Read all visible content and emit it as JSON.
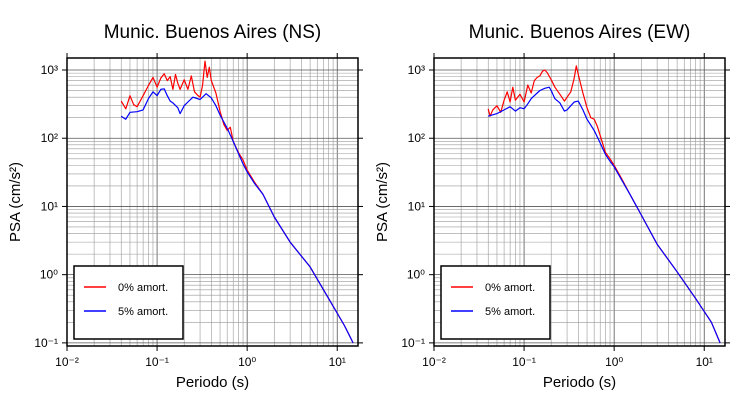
{
  "chart_data": [
    {
      "type": "line",
      "title": "Munic. Buenos Aires (NS)",
      "xlabel": "Periodo (s)",
      "ylabel": "PSA (cm/s²)",
      "xscale": "log",
      "yscale": "log",
      "xlim": [
        0.01,
        17
      ],
      "ylim": [
        0.09,
        1500
      ],
      "grid": true,
      "legend_position": "bottom-left",
      "x_tick_labels": [
        "10⁻²",
        "10⁻¹",
        "10⁰",
        "10¹"
      ],
      "y_tick_labels": [
        "10⁻¹",
        "10⁰",
        "10¹",
        "10²",
        "10³"
      ],
      "series": [
        {
          "name": "0% amort.",
          "color": "#ff0000",
          "points": [
            [
              0.04,
              350
            ],
            [
              0.045,
              270
            ],
            [
              0.05,
              420
            ],
            [
              0.055,
              310
            ],
            [
              0.06,
              290
            ],
            [
              0.07,
              420
            ],
            [
              0.08,
              590
            ],
            [
              0.09,
              780
            ],
            [
              0.1,
              560
            ],
            [
              0.11,
              760
            ],
            [
              0.12,
              880
            ],
            [
              0.13,
              700
            ],
            [
              0.14,
              800
            ],
            [
              0.15,
              520
            ],
            [
              0.16,
              860
            ],
            [
              0.17,
              640
            ],
            [
              0.18,
              520
            ],
            [
              0.2,
              720
            ],
            [
              0.22,
              520
            ],
            [
              0.24,
              820
            ],
            [
              0.26,
              480
            ],
            [
              0.28,
              430
            ],
            [
              0.3,
              400
            ],
            [
              0.32,
              600
            ],
            [
              0.34,
              1350
            ],
            [
              0.36,
              780
            ],
            [
              0.38,
              1100
            ],
            [
              0.4,
              700
            ],
            [
              0.45,
              460
            ],
            [
              0.5,
              250
            ],
            [
              0.55,
              160
            ],
            [
              0.6,
              130
            ],
            [
              0.65,
              145
            ],
            [
              0.7,
              90
            ],
            [
              0.8,
              62
            ],
            [
              0.9,
              48
            ],
            [
              1.0,
              34
            ],
            [
              1.2,
              23
            ],
            [
              1.5,
              15
            ],
            [
              2.0,
              7
            ],
            [
              3.0,
              3
            ],
            [
              5.0,
              1.3
            ],
            [
              8.0,
              0.45
            ],
            [
              12.0,
              0.18
            ],
            [
              15.0,
              0.1
            ]
          ]
        },
        {
          "name": "5% amort.",
          "color": "#0000ff",
          "points": [
            [
              0.04,
              210
            ],
            [
              0.045,
              190
            ],
            [
              0.05,
              240
            ],
            [
              0.06,
              245
            ],
            [
              0.07,
              260
            ],
            [
              0.08,
              380
            ],
            [
              0.09,
              480
            ],
            [
              0.1,
              420
            ],
            [
              0.11,
              520
            ],
            [
              0.12,
              530
            ],
            [
              0.13,
              420
            ],
            [
              0.14,
              350
            ],
            [
              0.15,
              330
            ],
            [
              0.17,
              280
            ],
            [
              0.18,
              230
            ],
            [
              0.2,
              300
            ],
            [
              0.22,
              340
            ],
            [
              0.25,
              400
            ],
            [
              0.3,
              370
            ],
            [
              0.35,
              450
            ],
            [
              0.4,
              390
            ],
            [
              0.45,
              300
            ],
            [
              0.5,
              220
            ],
            [
              0.6,
              140
            ],
            [
              0.7,
              90
            ],
            [
              0.8,
              60
            ],
            [
              0.9,
              42
            ],
            [
              1.0,
              32
            ],
            [
              1.2,
              22
            ],
            [
              1.5,
              15
            ],
            [
              2.0,
              7
            ],
            [
              3.0,
              3
            ],
            [
              5.0,
              1.3
            ],
            [
              8.0,
              0.45
            ],
            [
              12.0,
              0.18
            ],
            [
              15.0,
              0.1
            ]
          ]
        }
      ]
    },
    {
      "type": "line",
      "title": "Munic. Buenos Aires (EW)",
      "xlabel": "Periodo (s)",
      "ylabel": "PSA (cm/s²)",
      "xscale": "log",
      "yscale": "log",
      "xlim": [
        0.01,
        17
      ],
      "ylim": [
        0.09,
        1500
      ],
      "grid": true,
      "legend_position": "bottom-left",
      "x_tick_labels": [
        "10⁻²",
        "10⁻¹",
        "10⁰",
        "10¹"
      ],
      "y_tick_labels": [
        "10⁻¹",
        "10⁰",
        "10¹",
        "10²",
        "10³"
      ],
      "series": [
        {
          "name": "0% amort.",
          "color": "#ff0000",
          "points": [
            [
              0.04,
              270
            ],
            [
              0.042,
              210
            ],
            [
              0.045,
              260
            ],
            [
              0.05,
              300
            ],
            [
              0.055,
              240
            ],
            [
              0.06,
              360
            ],
            [
              0.065,
              480
            ],
            [
              0.07,
              340
            ],
            [
              0.075,
              560
            ],
            [
              0.08,
              360
            ],
            [
              0.09,
              440
            ],
            [
              0.1,
              340
            ],
            [
              0.11,
              600
            ],
            [
              0.12,
              460
            ],
            [
              0.13,
              700
            ],
            [
              0.14,
              780
            ],
            [
              0.15,
              820
            ],
            [
              0.16,
              960
            ],
            [
              0.17,
              1000
            ],
            [
              0.18,
              920
            ],
            [
              0.2,
              720
            ],
            [
              0.22,
              560
            ],
            [
              0.25,
              440
            ],
            [
              0.28,
              350
            ],
            [
              0.3,
              400
            ],
            [
              0.33,
              480
            ],
            [
              0.36,
              760
            ],
            [
              0.38,
              1150
            ],
            [
              0.4,
              860
            ],
            [
              0.45,
              460
            ],
            [
              0.5,
              280
            ],
            [
              0.55,
              200
            ],
            [
              0.6,
              190
            ],
            [
              0.65,
              150
            ],
            [
              0.7,
              110
            ],
            [
              0.8,
              62
            ],
            [
              0.9,
              50
            ],
            [
              1.0,
              40
            ],
            [
              1.2,
              26
            ],
            [
              1.5,
              15
            ],
            [
              2.0,
              7.5
            ],
            [
              3.0,
              2.8
            ],
            [
              5.0,
              1.1
            ],
            [
              8.0,
              0.45
            ],
            [
              12.0,
              0.2
            ],
            [
              15.0,
              0.1
            ]
          ]
        },
        {
          "name": "5% amort.",
          "color": "#0000ff",
          "points": [
            [
              0.04,
              210
            ],
            [
              0.05,
              230
            ],
            [
              0.06,
              260
            ],
            [
              0.07,
              290
            ],
            [
              0.08,
              250
            ],
            [
              0.09,
              280
            ],
            [
              0.1,
              270
            ],
            [
              0.11,
              320
            ],
            [
              0.12,
              380
            ],
            [
              0.13,
              420
            ],
            [
              0.15,
              500
            ],
            [
              0.17,
              540
            ],
            [
              0.19,
              560
            ],
            [
              0.2,
              500
            ],
            [
              0.22,
              380
            ],
            [
              0.25,
              330
            ],
            [
              0.28,
              250
            ],
            [
              0.3,
              260
            ],
            [
              0.33,
              300
            ],
            [
              0.36,
              340
            ],
            [
              0.4,
              350
            ],
            [
              0.45,
              260
            ],
            [
              0.5,
              190
            ],
            [
              0.6,
              130
            ],
            [
              0.7,
              85
            ],
            [
              0.8,
              58
            ],
            [
              0.9,
              46
            ],
            [
              1.0,
              38
            ],
            [
              1.2,
              25
            ],
            [
              1.5,
              15
            ],
            [
              2.0,
              7.5
            ],
            [
              3.0,
              2.8
            ],
            [
              5.0,
              1.1
            ],
            [
              8.0,
              0.45
            ],
            [
              12.0,
              0.2
            ],
            [
              15.0,
              0.1
            ]
          ]
        }
      ]
    }
  ]
}
